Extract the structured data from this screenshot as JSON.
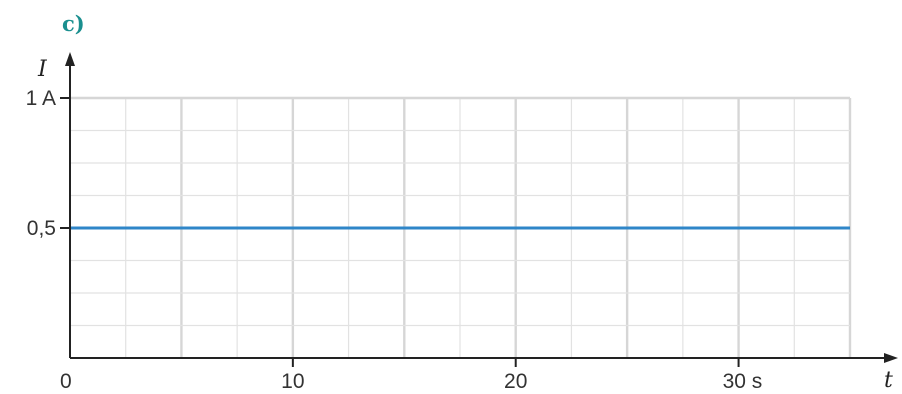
{
  "chart_data": {
    "type": "line",
    "label": "c)",
    "xlabel": "t",
    "ylabel": "I",
    "xlim": [
      0,
      35
    ],
    "ylim": [
      0,
      1
    ],
    "x_ticks": [
      {
        "value": 0,
        "label": "0"
      },
      {
        "value": 10,
        "label": "10"
      },
      {
        "value": 20,
        "label": "20"
      },
      {
        "value": 30,
        "label": "30 s"
      }
    ],
    "y_ticks": [
      {
        "value": 0.5,
        "label": "0,5"
      },
      {
        "value": 1,
        "label": "1 A"
      }
    ],
    "grid": true,
    "series": [
      {
        "color": "#2f86c8",
        "x": [
          0,
          35
        ],
        "y": [
          0.5,
          0.5
        ]
      }
    ]
  }
}
